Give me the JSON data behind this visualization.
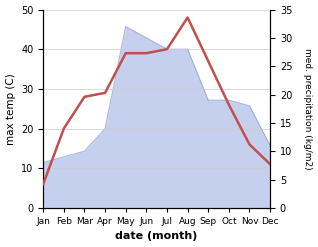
{
  "months": [
    "Jan",
    "Feb",
    "Mar",
    "Apr",
    "May",
    "Jun",
    "Jul",
    "Aug",
    "Sep",
    "Oct",
    "Nov",
    "Dec"
  ],
  "temperature": [
    6,
    20,
    28,
    29,
    39,
    39,
    40,
    48,
    37,
    26,
    16,
    11
  ],
  "precipitation": [
    8,
    9,
    10,
    14,
    32,
    30,
    28,
    28,
    19,
    19,
    18,
    11
  ],
  "temp_color": "#c0504d",
  "precip_fill_color": "#c5d0ee",
  "precip_line_color": "#8899cc",
  "temp_ylim": [
    0,
    50
  ],
  "precip_ylim": [
    0,
    35
  ],
  "temp_yticks": [
    0,
    10,
    20,
    30,
    40,
    50
  ],
  "precip_yticks": [
    0,
    5,
    10,
    15,
    20,
    25,
    30,
    35
  ],
  "xlabel": "date (month)",
  "ylabel_left": "max temp (C)",
  "ylabel_right": "med. precipitation (kg/m2)",
  "bg_color": "#ffffff",
  "line_width": 1.8,
  "fig_width": 3.18,
  "fig_height": 2.47,
  "dpi": 100
}
